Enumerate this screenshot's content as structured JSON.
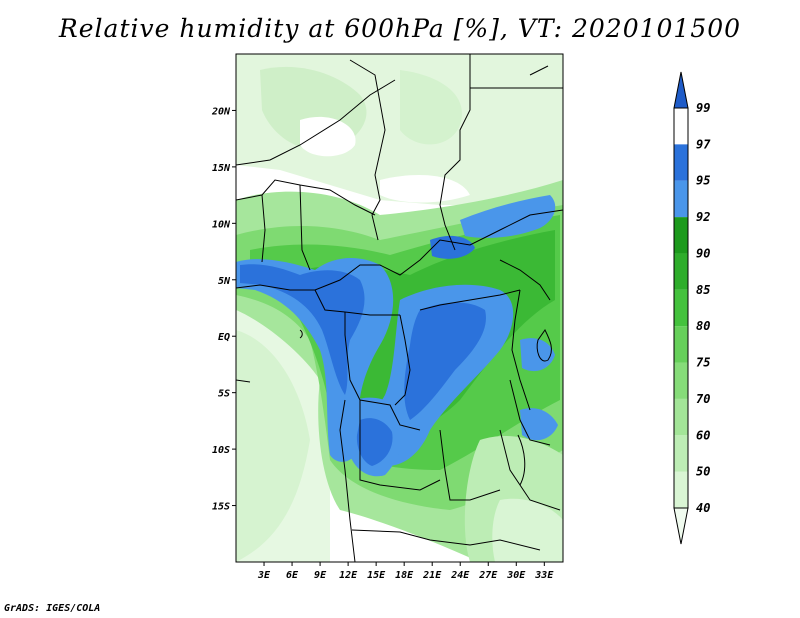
{
  "title": "Relative humidity at 600hPa [%], VT: 2020101500",
  "footer": "GrADS: IGES/COLA",
  "map": {
    "lon_range": [
      0,
      35
    ],
    "lat_range": [
      -20,
      25
    ],
    "lat_ticks": [
      {
        "value": 20,
        "label": "20N"
      },
      {
        "value": 15,
        "label": "15N"
      },
      {
        "value": 10,
        "label": "10N"
      },
      {
        "value": 5,
        "label": "5N"
      },
      {
        "value": 0,
        "label": "EQ"
      },
      {
        "value": -5,
        "label": "5S"
      },
      {
        "value": -10,
        "label": "10S"
      },
      {
        "value": -15,
        "label": "15S"
      }
    ],
    "lon_ticks": [
      {
        "value": 3,
        "label": "3E"
      },
      {
        "value": 6,
        "label": "6E"
      },
      {
        "value": 9,
        "label": "9E"
      },
      {
        "value": 12,
        "label": "12E"
      },
      {
        "value": 15,
        "label": "15E"
      },
      {
        "value": 18,
        "label": "18E"
      },
      {
        "value": 21,
        "label": "21E"
      },
      {
        "value": 24,
        "label": "24E"
      },
      {
        "value": 27,
        "label": "27E"
      },
      {
        "value": 30,
        "label": "30E"
      },
      {
        "value": 33,
        "label": "33E"
      }
    ]
  },
  "colorbar": {
    "levels": [
      "40",
      "50",
      "60",
      "70",
      "75",
      "80",
      "85",
      "90",
      "92",
      "95",
      "97",
      "99"
    ],
    "colors": [
      "#f0fbef",
      "#d9f5d4",
      "#bdedb5",
      "#a3e598",
      "#86dc79",
      "#66d05a",
      "#44c23d",
      "#2ead2b",
      "#1c9a1c",
      "#4a96ea",
      "#2b72db",
      "#1f5cc8"
    ]
  }
}
